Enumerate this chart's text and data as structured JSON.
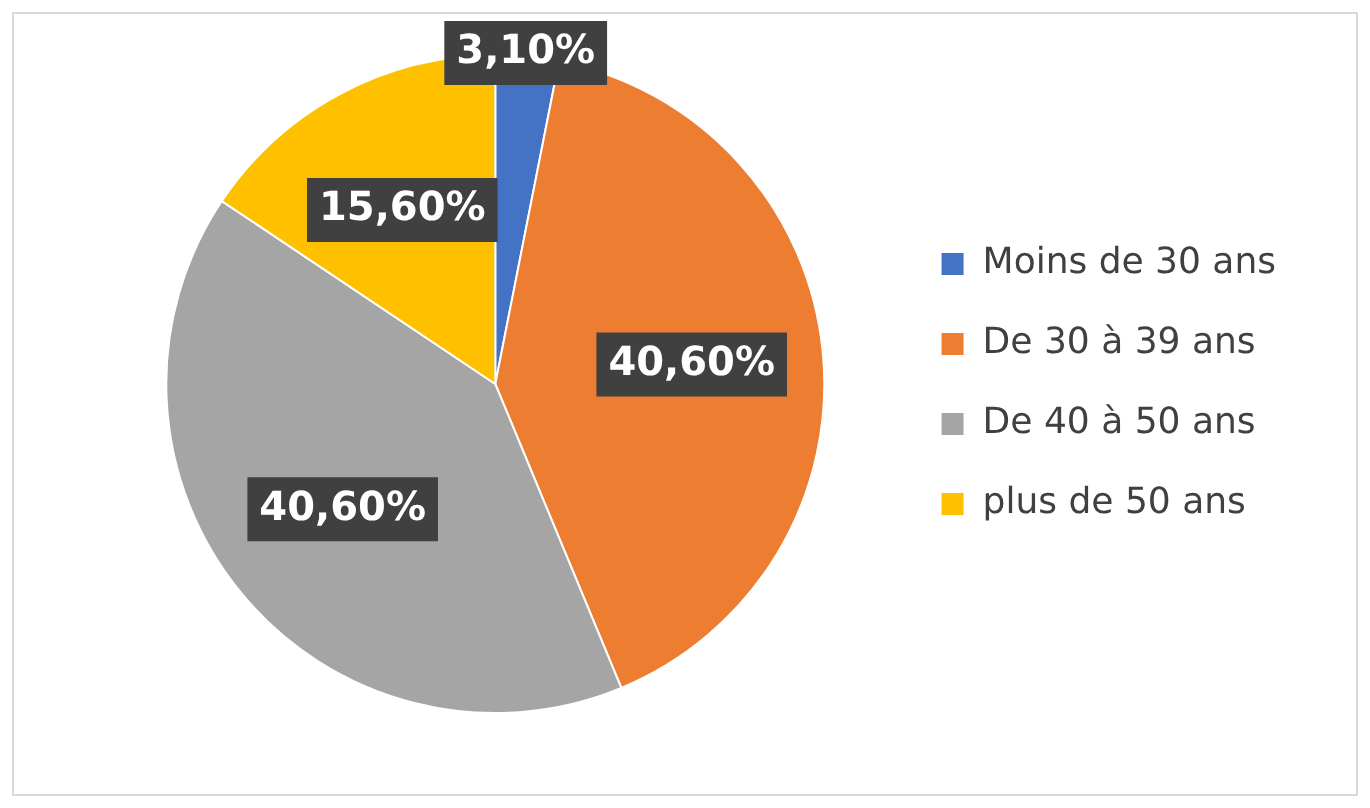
{
  "chart_data": {
    "type": "pie",
    "categories": [
      "Moins de 30 ans",
      "De 30 à 39 ans",
      "De 40 à 50 ans",
      "plus de 50 ans"
    ],
    "values": [
      3.1,
      40.6,
      40.6,
      15.6
    ],
    "value_labels": [
      "3,10%",
      "40,60%",
      "40,60%",
      "15,60%"
    ],
    "colors": [
      "#4472c4",
      "#ed7d31",
      "#a5a5a5",
      "#ffc000"
    ],
    "legend": "right"
  }
}
